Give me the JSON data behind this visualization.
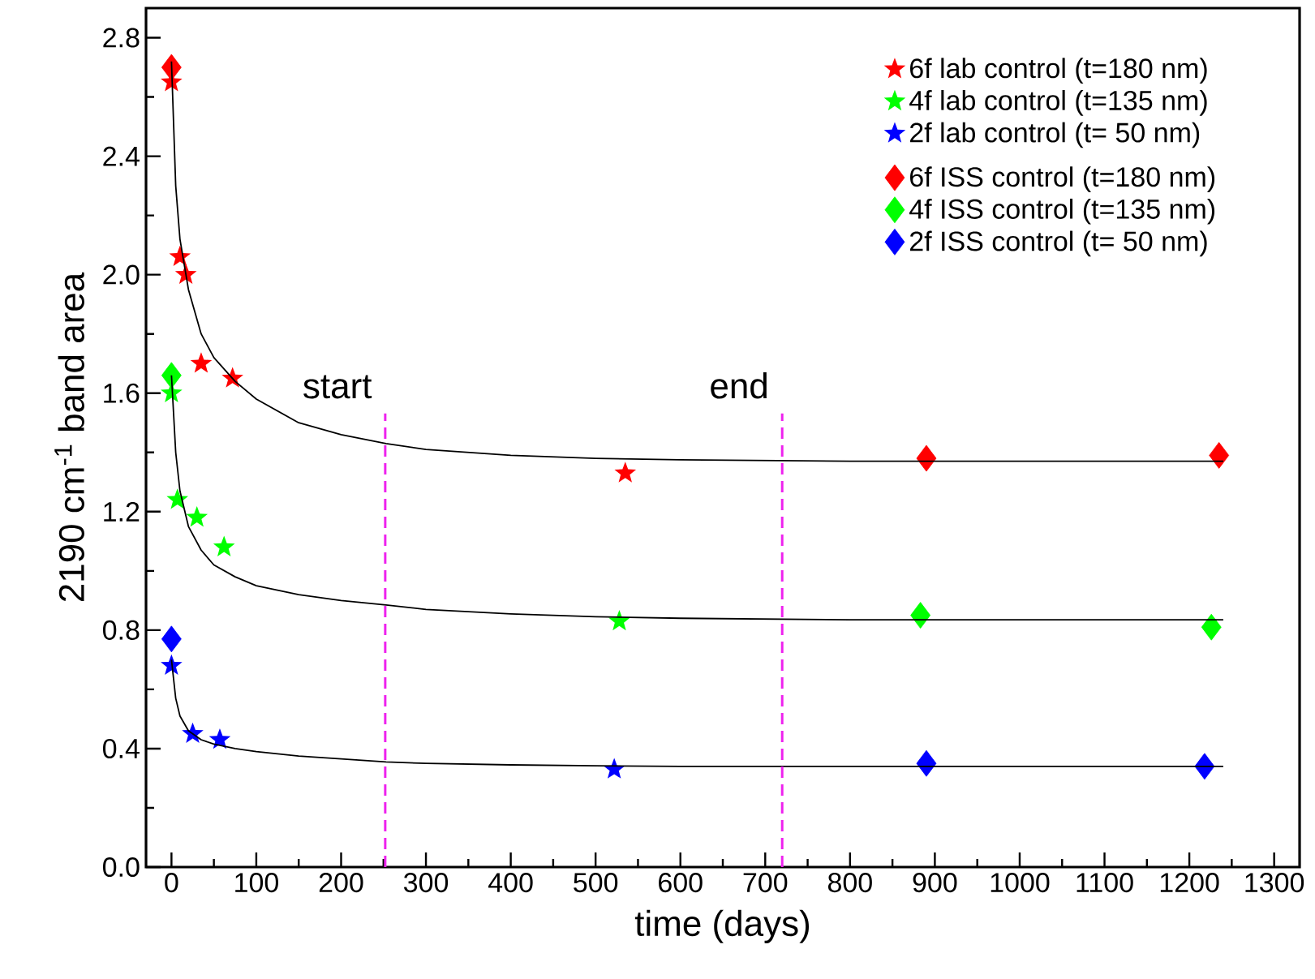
{
  "chart_data": {
    "type": "scatter",
    "xlabel": "time (days)",
    "ylabel": "2190 cm$^{-1}$ band area",
    "xlim": [
      -30,
      1330
    ],
    "ylim": [
      0,
      2.9
    ],
    "xticks": [
      0,
      100,
      200,
      300,
      400,
      500,
      600,
      700,
      800,
      900,
      1000,
      1100,
      1200,
      1300
    ],
    "yticks": [
      {
        "value": 0,
        "label": "0.0"
      },
      {
        "value": 0.4,
        "label": "0.4"
      },
      {
        "value": 0.8,
        "label": "0.8"
      },
      {
        "value": 1.2,
        "label": "1.2"
      },
      {
        "value": 1.6,
        "label": "1.6"
      },
      {
        "value": 2.0,
        "label": "2.0"
      },
      {
        "value": 2.4,
        "label": "2.4"
      },
      {
        "value": 2.8,
        "label": "2.8"
      }
    ],
    "legend": "top right",
    "grid": false,
    "series": [
      {
        "name": "6f lab control (t=180 nm)",
        "color": "#ff0000",
        "marker": "star",
        "x": [
          0,
          10,
          17,
          35,
          72,
          535
        ],
        "values": [
          2.65,
          2.06,
          2.0,
          1.7,
          1.65,
          1.33
        ]
      },
      {
        "name": "4f lab control (t=135 nm)",
        "color": "#00ff00",
        "marker": "star",
        "x": [
          0,
          7,
          30,
          62,
          528
        ],
        "values": [
          1.6,
          1.24,
          1.18,
          1.08,
          0.83
        ]
      },
      {
        "name": "2f lab control (t= 50 nm)",
        "color": "#0000ff",
        "marker": "star",
        "x": [
          0,
          25,
          57,
          522
        ],
        "values": [
          0.68,
          0.45,
          0.43,
          0.33
        ]
      },
      {
        "name": "6f ISS control (t=180 nm)",
        "color": "#ff0000",
        "marker": "diamond",
        "x": [
          0,
          890,
          1235
        ],
        "values": [
          2.7,
          1.38,
          1.39
        ]
      },
      {
        "name": "4f ISS control (t=135 nm)",
        "color": "#00ff00",
        "marker": "diamond",
        "x": [
          0,
          883,
          1226
        ],
        "values": [
          1.66,
          0.85,
          0.81
        ]
      },
      {
        "name": "2f ISS control (t= 50 nm)",
        "color": "#0000ff",
        "marker": "diamond",
        "x": [
          0,
          890,
          1218
        ],
        "values": [
          0.77,
          0.35,
          0.34
        ]
      },
      {
        "type": "line",
        "color": "#000000",
        "marker": "none",
        "x": [
          0,
          5,
          10,
          20,
          35,
          50,
          75,
          100,
          150,
          200,
          253,
          300,
          400,
          500,
          600,
          800,
          1000,
          1240
        ],
        "values": [
          2.72,
          2.3,
          2.12,
          1.95,
          1.8,
          1.72,
          1.64,
          1.58,
          1.5,
          1.46,
          1.43,
          1.41,
          1.39,
          1.38,
          1.375,
          1.37,
          1.37,
          1.37
        ]
      },
      {
        "type": "line",
        "color": "#000000",
        "marker": "none",
        "x": [
          0,
          5,
          10,
          20,
          35,
          50,
          75,
          100,
          150,
          200,
          253,
          300,
          400,
          500,
          600,
          800,
          1000,
          1240
        ],
        "values": [
          1.66,
          1.4,
          1.27,
          1.15,
          1.07,
          1.02,
          0.98,
          0.95,
          0.92,
          0.9,
          0.885,
          0.87,
          0.855,
          0.845,
          0.84,
          0.835,
          0.835,
          0.835
        ]
      },
      {
        "type": "line",
        "color": "#000000",
        "marker": "none",
        "x": [
          0,
          5,
          10,
          20,
          35,
          50,
          75,
          100,
          150,
          200,
          253,
          300,
          400,
          500,
          600,
          800,
          1000,
          1240
        ],
        "values": [
          0.7,
          0.57,
          0.51,
          0.46,
          0.43,
          0.415,
          0.4,
          0.39,
          0.375,
          0.365,
          0.355,
          0.35,
          0.345,
          0.342,
          0.34,
          0.34,
          0.34,
          0.34
        ]
      }
    ],
    "ref_lines": [
      {
        "axis": "x",
        "value": 252,
        "label": "start",
        "color": "#ee22ee",
        "line_style": "dashed"
      },
      {
        "axis": "x",
        "value": 720,
        "label": "end",
        "color": "#ee22ee",
        "line_style": "dashed"
      }
    ]
  }
}
